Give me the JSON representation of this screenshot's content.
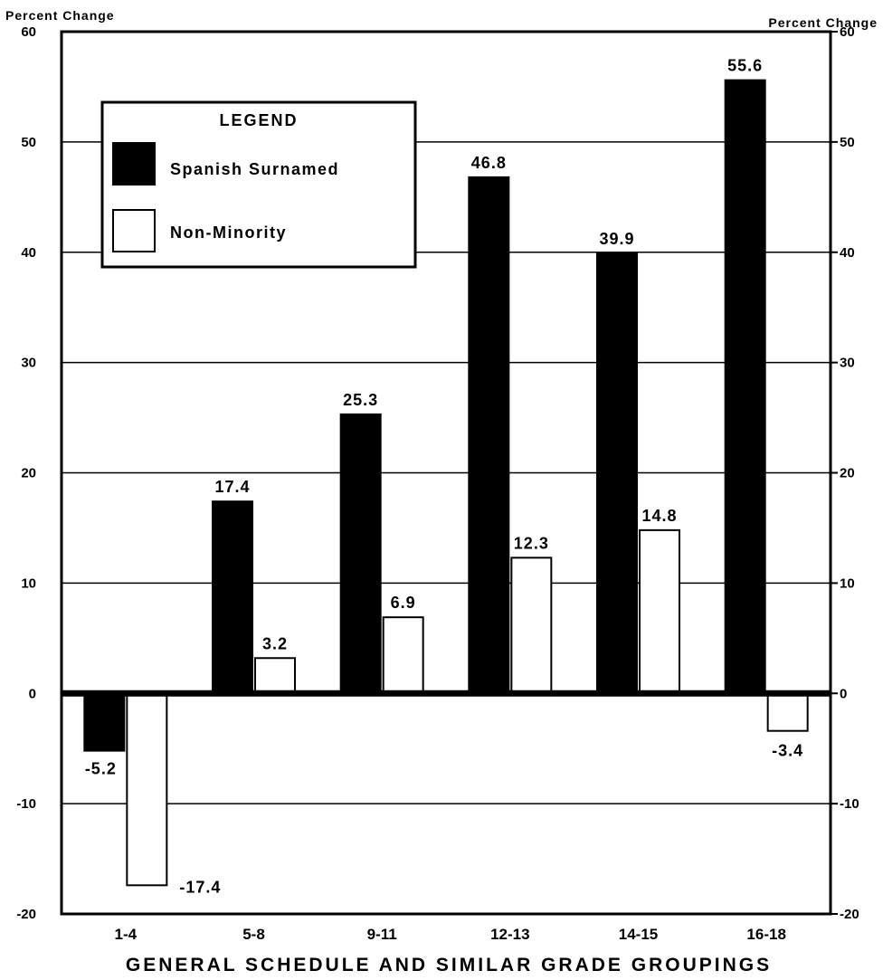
{
  "chart_data": {
    "type": "bar",
    "ylabel_left": "Percent Change",
    "ylabel_right": "Percent Change",
    "xlabel": "GENERAL SCHEDULE AND SIMILAR GRADE GROUPINGS",
    "categories": [
      "1-4",
      "5-8",
      "9-11",
      "12-13",
      "14-15",
      "16-18"
    ],
    "series": [
      {
        "name": "Spanish Surnamed",
        "values": [
          -5.2,
          17.4,
          25.3,
          46.8,
          39.9,
          55.6
        ],
        "labels": [
          "-5.2",
          "17.4",
          "25.3",
          "46.8",
          "39.9",
          "55.6"
        ],
        "color": "#000000"
      },
      {
        "name": "Non-Minority",
        "values": [
          -17.4,
          3.2,
          6.9,
          12.3,
          14.8,
          -3.4
        ],
        "labels": [
          "-17.4",
          "3.2",
          "6.9",
          "12.3",
          "14.8",
          "-3.4"
        ],
        "color": "#ffffff"
      }
    ],
    "ylim": [
      -20,
      60
    ],
    "yticks": [
      -20,
      -10,
      0,
      10,
      20,
      30,
      40,
      50,
      60
    ],
    "grid": true,
    "legend": {
      "title": "LEGEND",
      "placement": "top-left"
    }
  }
}
